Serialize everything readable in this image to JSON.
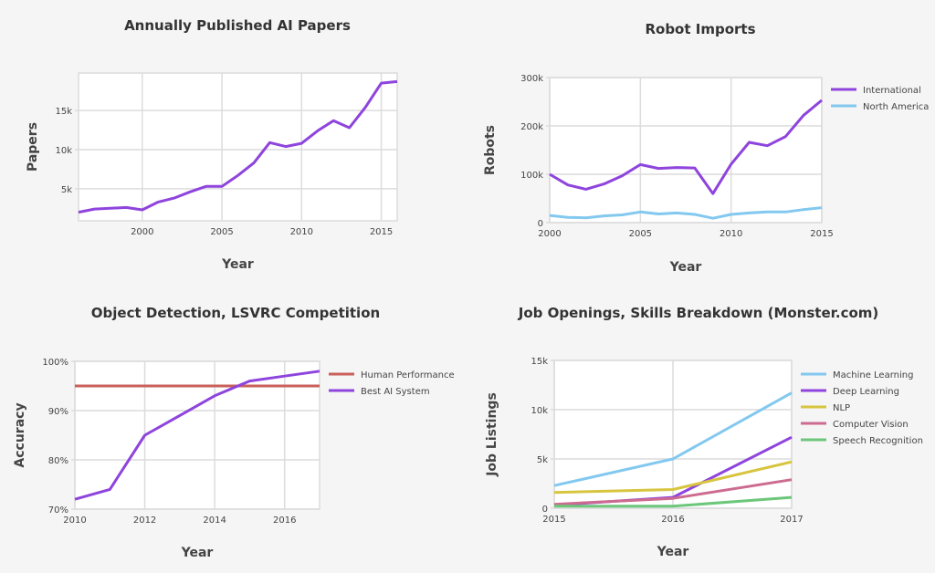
{
  "chart_data": [
    {
      "type": "line",
      "title": "Annually Published AI Papers",
      "xlabel": "Year",
      "ylabel": "Papers",
      "xlim": [
        1996,
        2016
      ],
      "ylim": [
        900,
        19800
      ],
      "x_ticks": [
        2000,
        2005,
        2010,
        2015
      ],
      "x_tick_labels": [
        "2000",
        "2005",
        "2010",
        "2015"
      ],
      "y_ticks": [
        5000,
        10000,
        15000
      ],
      "y_tick_labels": [
        "5k",
        "10k",
        "15k"
      ],
      "grid": true,
      "x": [
        1996,
        1997,
        1998,
        1999,
        2000,
        2001,
        2002,
        2003,
        2004,
        2005,
        2006,
        2007,
        2008,
        2009,
        2010,
        2011,
        2012,
        2013,
        2014,
        2015,
        2016
      ],
      "series": [
        {
          "color": "#8e44dd",
          "values": [
            2000,
            2400,
            2500,
            2600,
            2300,
            3300,
            3800,
            4600,
            5300,
            5300,
            6700,
            8300,
            10900,
            10400,
            10800,
            12400,
            13700,
            12800,
            15400,
            18500,
            18700
          ]
        }
      ]
    },
    {
      "type": "line",
      "title": "Robot Imports",
      "xlabel": "Year",
      "ylabel": "Robots",
      "xlim": [
        2000,
        2015
      ],
      "ylim": [
        0,
        300000
      ],
      "x_ticks": [
        2000,
        2005,
        2010,
        2015
      ],
      "x_tick_labels": [
        "2000",
        "2005",
        "2010",
        "2015"
      ],
      "y_ticks": [
        0,
        100000,
        200000,
        300000
      ],
      "y_tick_labels": [
        "0",
        "100k",
        "200k",
        "300k"
      ],
      "grid": true,
      "legend": "right",
      "x": [
        2000,
        2001,
        2002,
        2003,
        2004,
        2005,
        2006,
        2007,
        2008,
        2009,
        2010,
        2011,
        2012,
        2013,
        2014,
        2015
      ],
      "series": [
        {
          "name": "International",
          "color": "#8e44dd",
          "values": [
            100000,
            78000,
            69000,
            80000,
            97000,
            120000,
            112000,
            114000,
            113000,
            60000,
            121000,
            166000,
            159000,
            178000,
            222000,
            253000
          ]
        },
        {
          "name": "North America",
          "color": "#82c8ef",
          "values": [
            15000,
            11000,
            10000,
            14000,
            16000,
            22000,
            18000,
            20000,
            17000,
            9000,
            17000,
            20000,
            22000,
            22000,
            27000,
            31000
          ]
        }
      ]
    },
    {
      "type": "line",
      "title": "Object Detection, LSVRC Competition",
      "xlabel": "Year",
      "ylabel": "Accuracy",
      "xlim": [
        2010,
        2017
      ],
      "ylim": [
        70,
        100
      ],
      "x_ticks": [
        2010,
        2012,
        2014,
        2016
      ],
      "x_tick_labels": [
        "2010",
        "2012",
        "2014",
        "2016"
      ],
      "y_ticks": [
        70,
        80,
        90,
        100
      ],
      "y_tick_labels": [
        "70%",
        "80%",
        "90%",
        "100%"
      ],
      "grid": true,
      "legend": "right",
      "x": [
        2010,
        2011,
        2012,
        2013,
        2014,
        2015,
        2016,
        2017
      ],
      "series": [
        {
          "name": "Human Performance",
          "color": "#c9605a",
          "values": [
            95,
            95,
            95,
            95,
            95,
            95,
            95,
            95
          ]
        },
        {
          "name": "Best AI System",
          "color": "#8e44dd",
          "values": [
            72,
            74,
            85,
            89,
            93,
            96,
            97,
            98
          ]
        }
      ]
    },
    {
      "type": "line",
      "title": "Job Openings, Skills Breakdown (Monster.com)",
      "xlabel": "Year",
      "ylabel": "Job Listings",
      "xlim": [
        2015,
        2017
      ],
      "ylim": [
        0,
        15000
      ],
      "x_ticks": [
        2015,
        2016,
        2017
      ],
      "x_tick_labels": [
        "2015",
        "2016",
        "2017"
      ],
      "y_ticks": [
        0,
        5000,
        10000,
        15000
      ],
      "y_tick_labels": [
        "0",
        "5k",
        "10k",
        "15k"
      ],
      "grid": true,
      "legend": "right",
      "x": [
        2015,
        2016,
        2017
      ],
      "series": [
        {
          "name": "Machine Learning",
          "color": "#82c8ef",
          "values": [
            2300,
            5000,
            11700
          ]
        },
        {
          "name": "Deep Learning",
          "color": "#8e44dd",
          "values": [
            300,
            1100,
            7200
          ]
        },
        {
          "name": "NLP",
          "color": "#d8c53f",
          "values": [
            1600,
            1900,
            4700
          ]
        },
        {
          "name": "Computer Vision",
          "color": "#cc6b8f",
          "values": [
            400,
            1000,
            2900
          ]
        },
        {
          "name": "Speech Recognition",
          "color": "#6cc77a",
          "values": [
            200,
            200,
            1100
          ]
        }
      ]
    }
  ]
}
